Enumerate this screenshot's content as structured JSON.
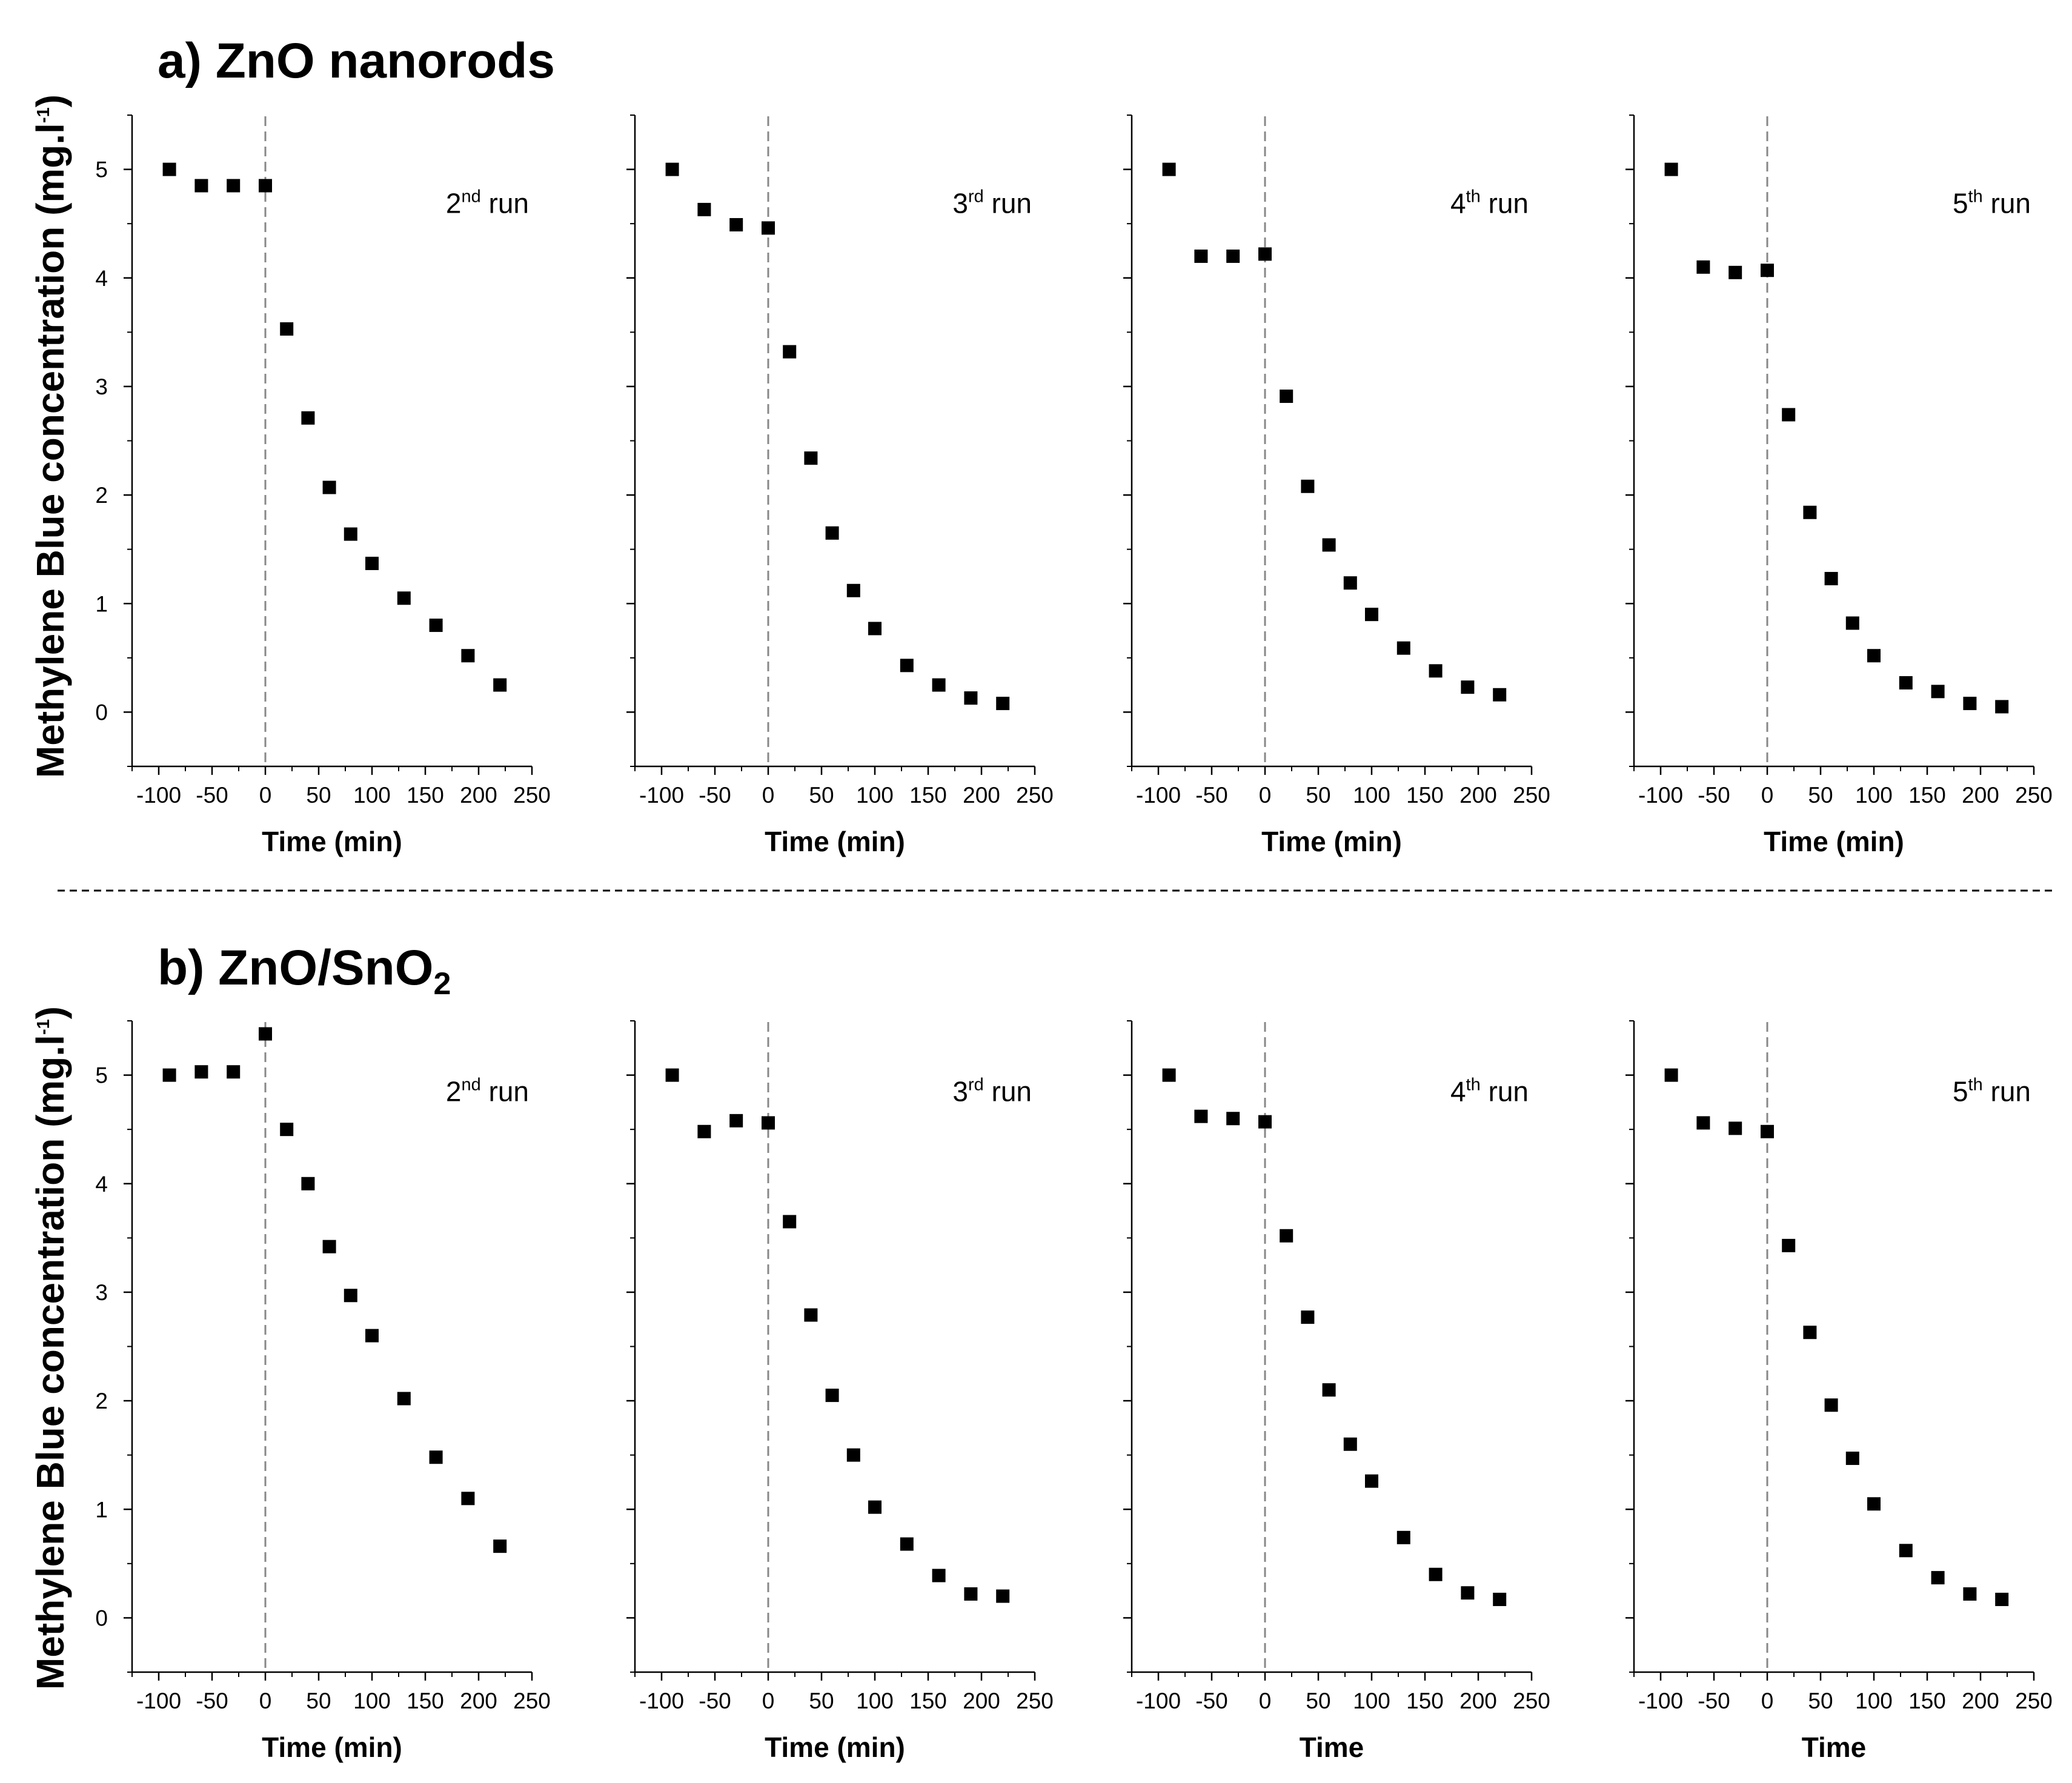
{
  "chart_data": {
    "type": "scatter",
    "xlim": [
      -125,
      250
    ],
    "ylim": [
      -0.5,
      5.5
    ],
    "x_ticks": [
      -100,
      -50,
      0,
      50,
      100,
      150,
      200,
      250
    ],
    "y_ticks": [
      0,
      1,
      2,
      3,
      4,
      5
    ],
    "x_values": [
      -90,
      -60,
      -30,
      0,
      20,
      40,
      60,
      80,
      100,
      130,
      160,
      190,
      220
    ],
    "vline_x": 0,
    "rows": [
      {
        "title_main": "a) ZnO nanorods",
        "title_subscript": "",
        "ylabel_main": "Methylene Blue concentration (mg.l",
        "ylabel_sup": "-1",
        "ylabel_end": ")",
        "panels": [
          {
            "run_num": "2",
            "run_sup": "nd",
            "run_word": " run",
            "xlabel": "Time (min)",
            "values": [
              5.0,
              4.85,
              4.85,
              4.85,
              3.53,
              2.71,
              2.07,
              1.64,
              1.37,
              1.05,
              0.8,
              0.52,
              0.25
            ]
          },
          {
            "run_num": "3",
            "run_sup": "rd",
            "run_word": " run",
            "xlabel": "Time (min)",
            "values": [
              5.0,
              4.63,
              4.49,
              4.46,
              3.32,
              2.34,
              1.65,
              1.12,
              0.77,
              0.43,
              0.25,
              0.13,
              0.08
            ]
          },
          {
            "run_num": "4",
            "run_sup": "th",
            "run_word": " run",
            "xlabel": "Time (min)",
            "values": [
              5.0,
              4.2,
              4.2,
              4.22,
              2.91,
              2.08,
              1.54,
              1.19,
              0.9,
              0.59,
              0.38,
              0.23,
              0.16
            ]
          },
          {
            "run_num": "5",
            "run_sup": "th",
            "run_word": " run",
            "xlabel": "Time (min)",
            "values": [
              5.0,
              4.1,
              4.05,
              4.07,
              2.74,
              1.84,
              1.23,
              0.82,
              0.52,
              0.27,
              0.19,
              0.08,
              0.05
            ]
          }
        ]
      },
      {
        "title_main": "b) ZnO/SnO",
        "title_subscript": "2",
        "ylabel_main": "Methylene Blue concentration (mg.l",
        "ylabel_sup": "-1",
        "ylabel_end": ")",
        "panels": [
          {
            "run_num": "2",
            "run_sup": "nd",
            "run_word": " run",
            "xlabel": "Time (min)",
            "values": [
              5.0,
              5.03,
              5.03,
              5.38,
              4.5,
              4.0,
              3.42,
              2.97,
              2.6,
              2.02,
              1.48,
              1.1,
              0.66
            ]
          },
          {
            "run_num": "3",
            "run_sup": "rd",
            "run_word": " run",
            "xlabel": "Time (min)",
            "values": [
              5.0,
              4.48,
              4.58,
              4.56,
              3.65,
              2.79,
              2.05,
              1.5,
              1.02,
              0.68,
              0.39,
              0.22,
              0.2
            ]
          },
          {
            "run_num": "4",
            "run_sup": "th",
            "run_word": " run",
            "xlabel": "Time",
            "values": [
              5.0,
              4.62,
              4.6,
              4.57,
              3.52,
              2.77,
              2.1,
              1.6,
              1.26,
              0.74,
              0.4,
              0.23,
              0.17
            ]
          },
          {
            "run_num": "5",
            "run_sup": "th",
            "run_word": " run",
            "xlabel": "Time",
            "values": [
              5.0,
              4.56,
              4.51,
              4.48,
              3.43,
              2.63,
              1.96,
              1.47,
              1.05,
              0.62,
              0.37,
              0.22,
              0.17
            ]
          }
        ]
      }
    ],
    "colors": {
      "marker": "#000000",
      "axis": "#000000",
      "vline": "#888888",
      "separator": "#000000"
    }
  }
}
